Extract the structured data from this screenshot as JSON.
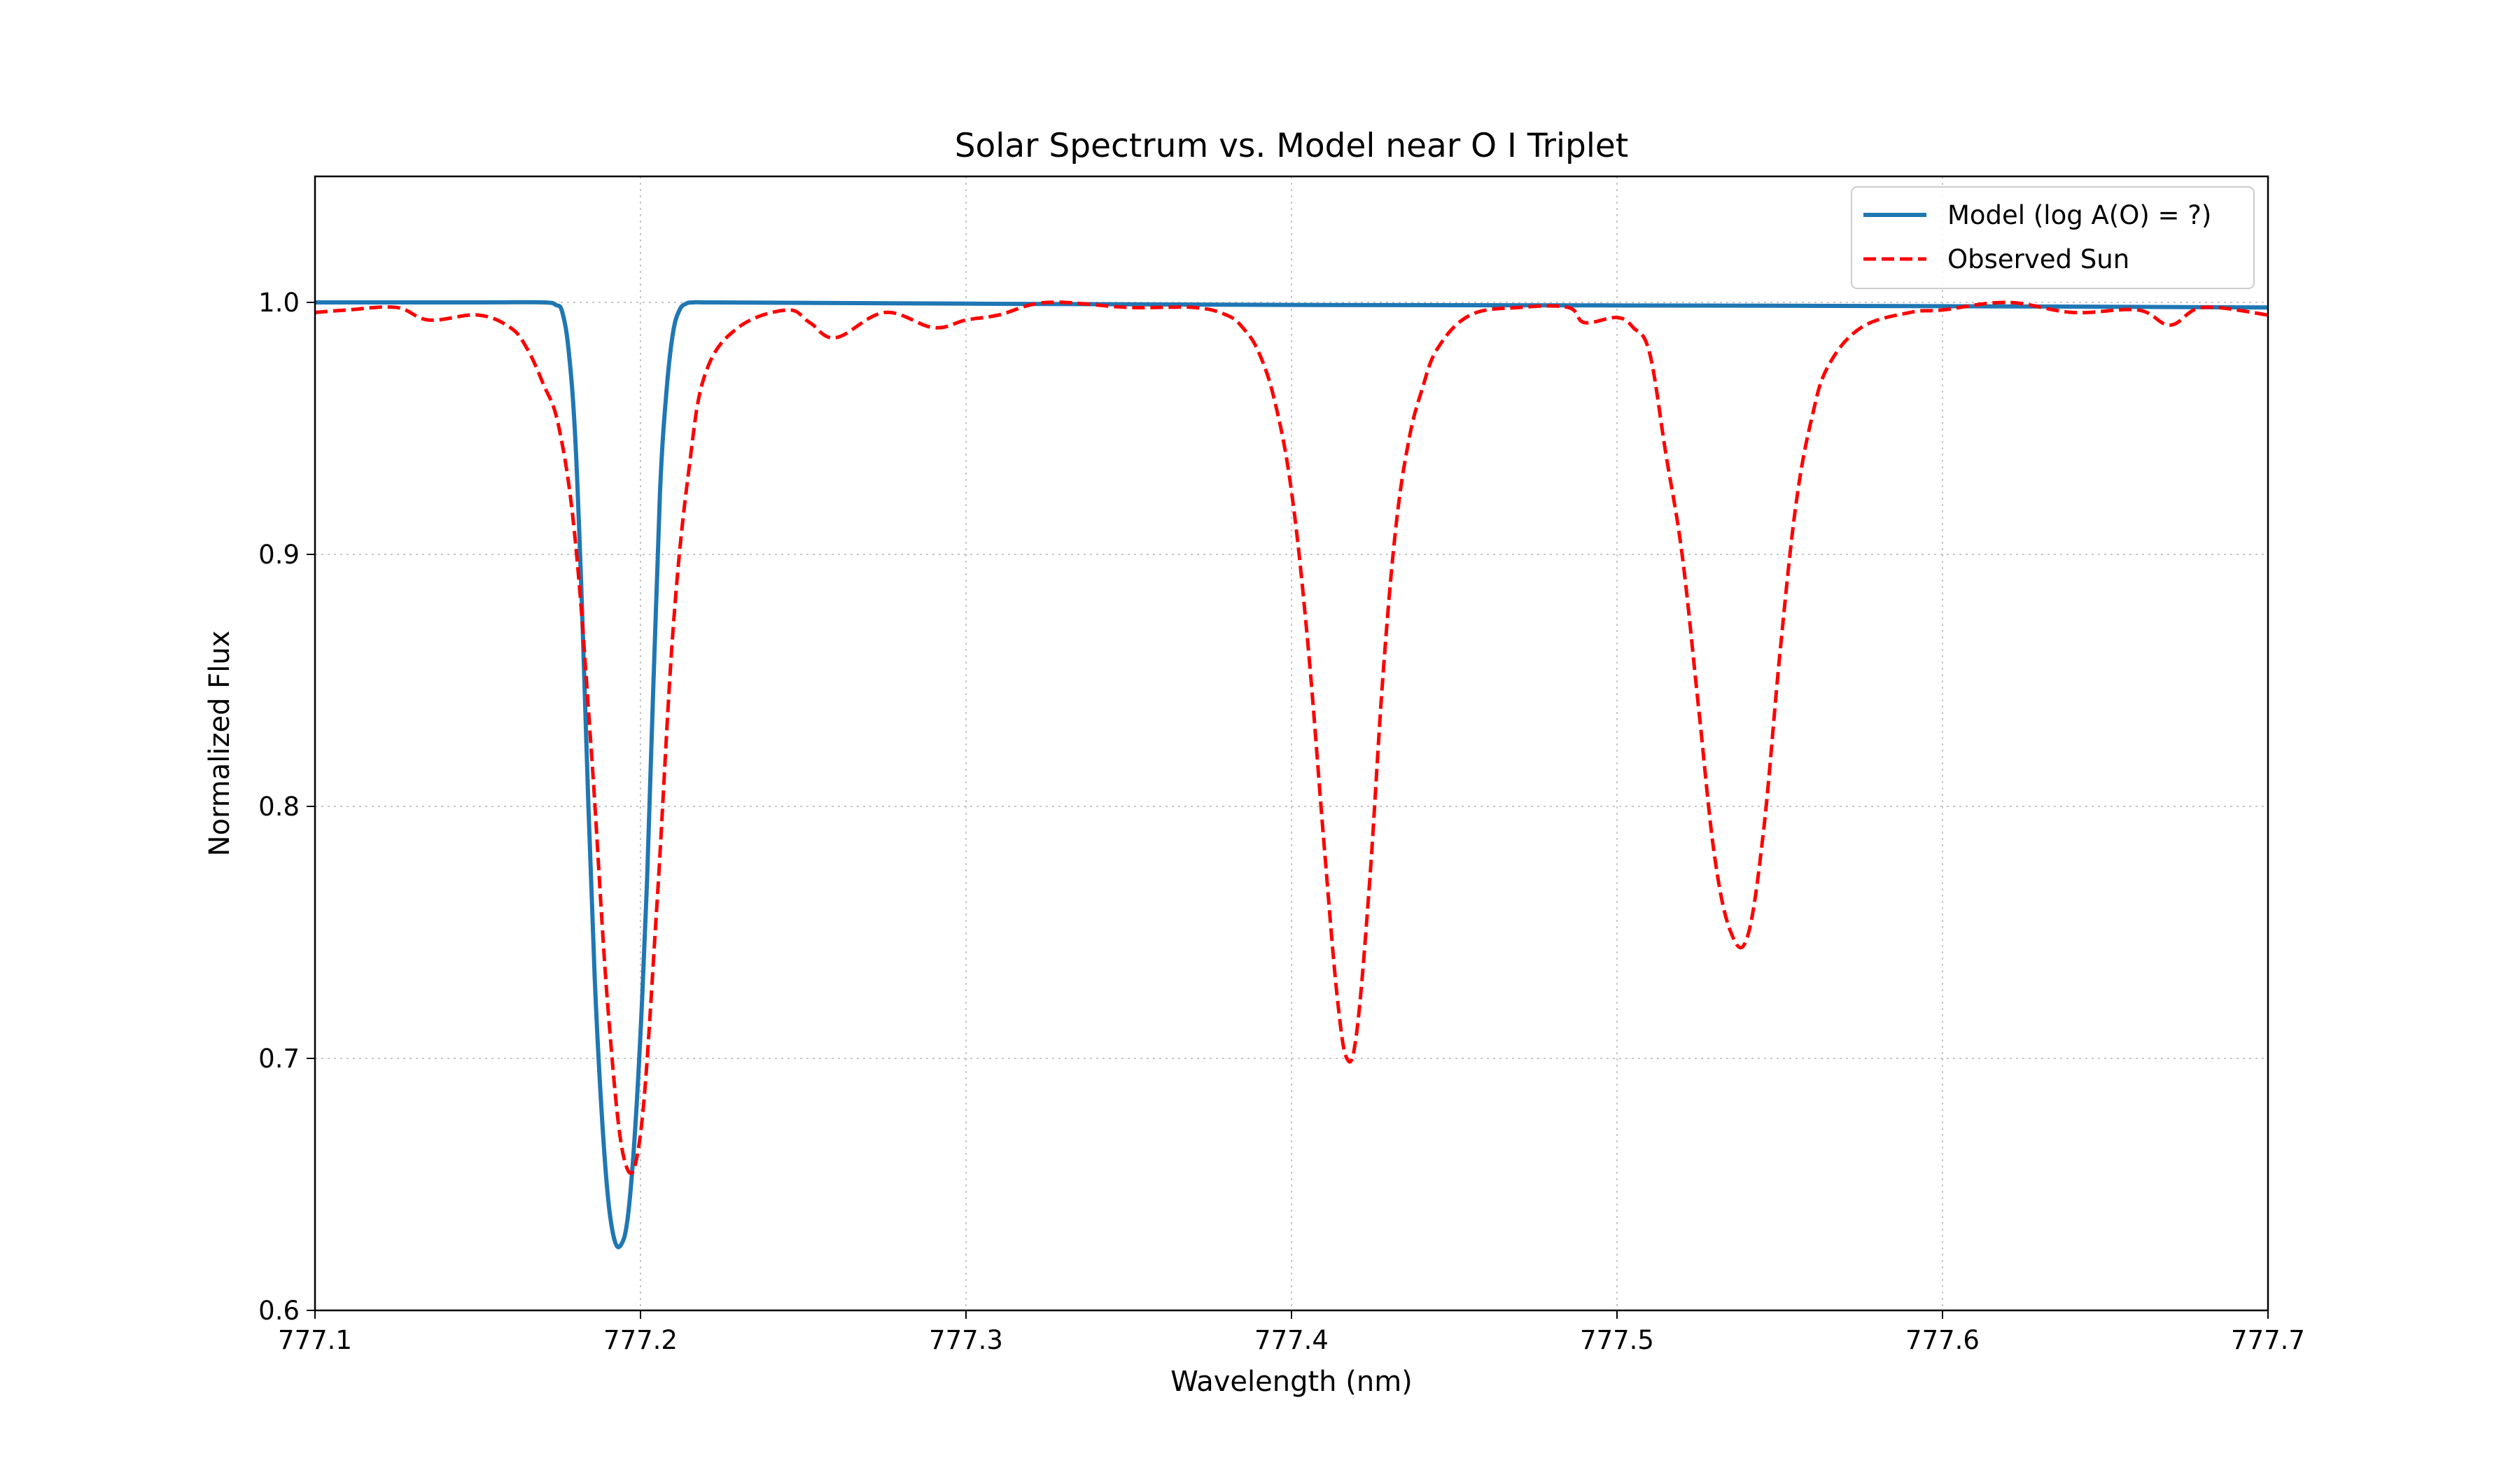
{
  "chart_data": {
    "type": "line",
    "title": "Solar Spectrum vs. Model near O I Triplet",
    "xlabel": "Wavelength (nm)",
    "ylabel": "Normalized Flux",
    "xlim": [
      777.1,
      777.7
    ],
    "ylim": [
      0.6,
      1.05
    ],
    "grid": true,
    "legend_position": "top-right",
    "x_ticks": [
      "777.1",
      "777.2",
      "777.3",
      "777.4",
      "777.5",
      "777.6",
      "777.7"
    ],
    "y_ticks": [
      "0.6",
      "0.7",
      "0.8",
      "0.9",
      "1.0"
    ],
    "series": [
      {
        "name": "Model (log A(O) = ?)",
        "color": "#1f77b4",
        "style": "solid",
        "x": [
          777.1,
          777.15,
          777.17,
          777.174,
          777.176,
          777.178,
          777.18,
          777.182,
          777.184,
          777.186,
          777.188,
          777.19,
          777.192,
          777.194,
          777.196,
          777.198,
          777.2,
          777.202,
          777.204,
          777.206,
          777.208,
          777.21,
          777.212,
          777.214,
          777.216,
          777.22,
          777.3,
          777.4,
          777.5,
          777.6,
          777.7
        ],
        "y": [
          1.0,
          1.0,
          1.0,
          0.999,
          0.996,
          0.98,
          0.945,
          0.88,
          0.8,
          0.73,
          0.68,
          0.645,
          0.628,
          0.626,
          0.636,
          0.665,
          0.71,
          0.77,
          0.85,
          0.925,
          0.965,
          0.988,
          0.997,
          0.9995,
          1.0,
          1.0,
          0.9995,
          0.999,
          0.9988,
          0.9985,
          0.998
        ]
      },
      {
        "name": "Observed Sun",
        "color": "#ff0000",
        "style": "dashed",
        "x": [
          777.1,
          777.11,
          777.125,
          777.135,
          777.15,
          777.16,
          777.165,
          777.17,
          777.175,
          777.18,
          777.185,
          777.19,
          777.195,
          777.2,
          777.205,
          777.21,
          777.215,
          777.22,
          777.23,
          777.245,
          777.252,
          777.26,
          777.275,
          777.29,
          777.3,
          777.31,
          777.325,
          777.35,
          777.37,
          777.38,
          777.385,
          777.39,
          777.395,
          777.4,
          777.405,
          777.41,
          777.414,
          777.417,
          777.42,
          777.424,
          777.428,
          777.432,
          777.436,
          777.44,
          777.445,
          777.455,
          777.47,
          777.485,
          777.49,
          777.5,
          777.505,
          777.51,
          777.515,
          777.52,
          777.525,
          777.53,
          777.535,
          777.54,
          777.545,
          777.55,
          777.555,
          777.56,
          777.565,
          777.575,
          777.59,
          777.6,
          777.62,
          777.64,
          777.66,
          777.67,
          777.68,
          777.7
        ],
        "y": [
          0.996,
          0.997,
          0.998,
          0.993,
          0.995,
          0.99,
          0.982,
          0.968,
          0.95,
          0.905,
          0.82,
          0.72,
          0.66,
          0.67,
          0.76,
          0.87,
          0.935,
          0.972,
          0.99,
          0.997,
          0.992,
          0.986,
          0.996,
          0.99,
          0.993,
          0.995,
          1.0,
          0.998,
          0.998,
          0.995,
          0.99,
          0.98,
          0.96,
          0.925,
          0.865,
          0.785,
          0.725,
          0.7,
          0.71,
          0.77,
          0.85,
          0.91,
          0.945,
          0.965,
          0.982,
          0.995,
          0.998,
          0.998,
          0.992,
          0.994,
          0.99,
          0.98,
          0.94,
          0.9,
          0.84,
          0.78,
          0.75,
          0.748,
          0.79,
          0.86,
          0.92,
          0.955,
          0.975,
          0.99,
          0.996,
          0.997,
          1.0,
          0.996,
          0.997,
          0.991,
          0.998,
          0.995
        ]
      }
    ]
  }
}
